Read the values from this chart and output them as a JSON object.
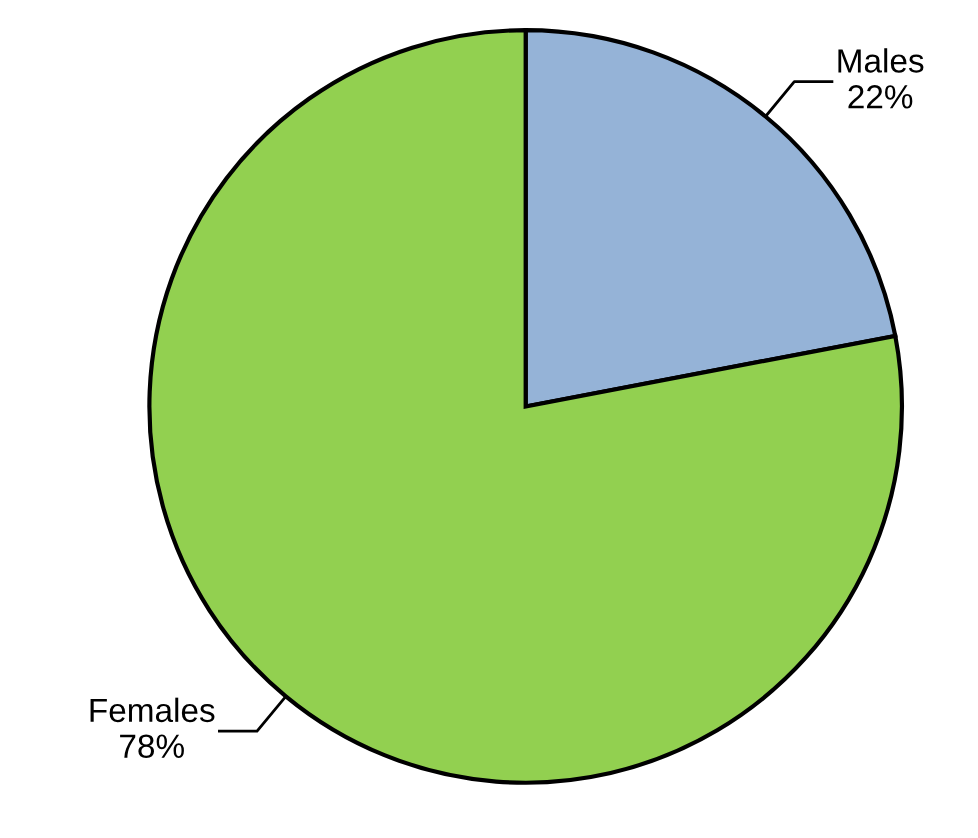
{
  "chart_data": {
    "type": "pie",
    "categories": [
      "Males",
      "Females"
    ],
    "values": [
      22,
      78
    ],
    "value_labels": [
      "22%",
      "78%"
    ],
    "colors": [
      "#95b3d7",
      "#92d050"
    ]
  }
}
